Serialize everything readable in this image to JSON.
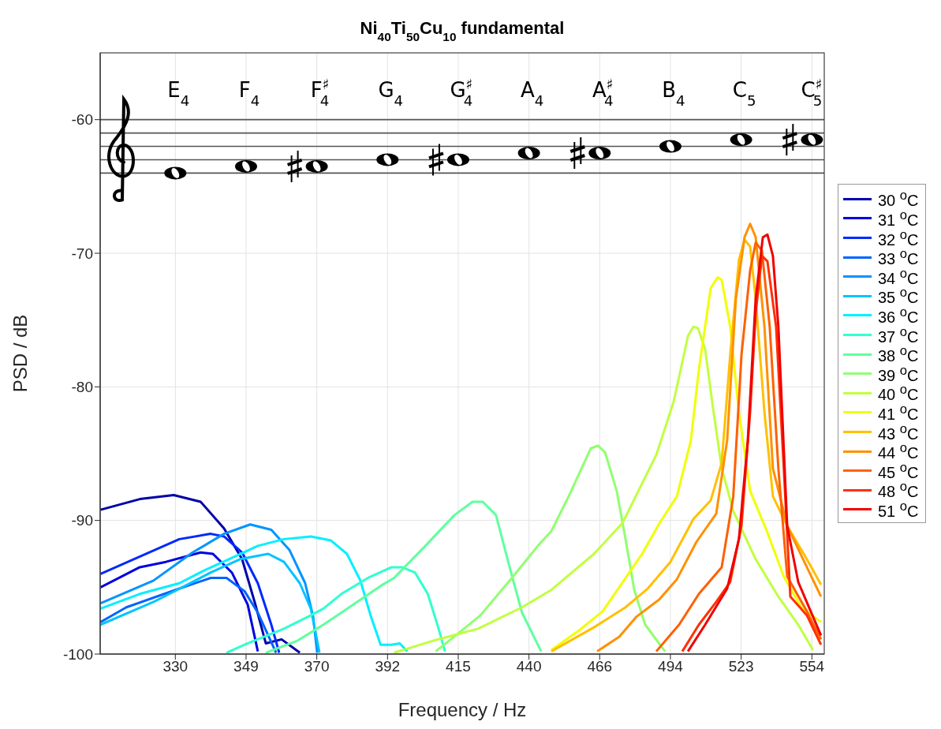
{
  "chart_data": {
    "type": "line",
    "title": "Ni$_{40}$Ti$_{50}$Cu$_{10}$ fundamental",
    "xlabel": "Frequency / Hz",
    "ylabel": "PSD / dB",
    "log": "x",
    "grid": true,
    "legend": "right",
    "line_style": "solid",
    "xlim": [
      310,
      560
    ],
    "ylim": [
      -100,
      -55
    ],
    "xticks": [
      {
        "value": 329.63,
        "label": "330"
      },
      {
        "value": 349.23,
        "label": "349"
      },
      {
        "value": 369.99,
        "label": "370"
      },
      {
        "value": 392,
        "label": "392"
      },
      {
        "value": 415.3,
        "label": "415"
      },
      {
        "value": 440,
        "label": "440"
      },
      {
        "value": 466.16,
        "label": "466"
      },
      {
        "value": 493.88,
        "label": "494"
      },
      {
        "value": 523.25,
        "label": "523"
      },
      {
        "value": 554.37,
        "label": "554"
      }
    ],
    "yticks": [
      -100,
      -90,
      -80,
      -70,
      -60
    ],
    "ref_lines": [
      {
        "axis": "y",
        "value": -60,
        "color": "#555555"
      },
      {
        "axis": "y",
        "value": -61,
        "color": "#555555"
      },
      {
        "axis": "y",
        "value": -62,
        "color": "#555555"
      },
      {
        "axis": "y",
        "value": -63,
        "color": "#555555"
      },
      {
        "axis": "y",
        "value": -64,
        "color": "#555555"
      }
    ],
    "annotations": [
      "E$_{4}$",
      "F$_{4}$",
      "F$^{♯}$$_{4}$",
      "G$_{4}$",
      "G$^{♯}$$_{4}$",
      "A$_{4}$",
      "A$^{♯}$$_{4}$",
      "B$_{4}$",
      "C$_{5}$",
      "C$^{♯}$$_{5}$"
    ],
    "series": [
      {
        "name": "30 $^{o}$C",
        "color": "#0000a8",
        "x": [
          310.1,
          320.2,
          329.2,
          336.5,
          343.0,
          348.1,
          351.9,
          354.9,
          359.5,
          364.9
        ],
        "values": [
          -89.2,
          -88.4,
          -88.1,
          -88.6,
          -90.6,
          -92.9,
          -96.3,
          -99.2,
          -98.9,
          -99.9
        ]
      },
      {
        "name": "31 $^{o}$C",
        "color": "#0000e0",
        "x": [
          310.1,
          320.2,
          327.1,
          336.5,
          339.9,
          345.2,
          349.7,
          352.6
        ],
        "values": [
          -95.0,
          -93.5,
          -93.1,
          -92.4,
          -92.5,
          -93.9,
          -96.3,
          -99.8
        ]
      },
      {
        "name": "32 $^{o}$C",
        "color": "#0028ff",
        "x": [
          310.1,
          330.7,
          339.3,
          343.0,
          348.1,
          352.6,
          356.5,
          358.8
        ],
        "values": [
          -94.0,
          -91.4,
          -91.0,
          -91.2,
          -92.4,
          -94.7,
          -97.8,
          -99.9
        ]
      },
      {
        "name": "33 $^{o}$C",
        "color": "#0064ff",
        "x": [
          310.1,
          316.7,
          330.7,
          339.3,
          343.7,
          348.8,
          352.6,
          355.6,
          357.9
        ],
        "values": [
          -97.6,
          -96.5,
          -95.1,
          -94.3,
          -94.3,
          -95.3,
          -96.9,
          -98.6,
          -99.9
        ]
      },
      {
        "name": "34 $^{o}$C",
        "color": "#0094ff",
        "x": [
          310.1,
          323.8,
          334.3,
          343.0,
          350.4,
          356.5,
          361.8,
          366.5,
          368.9,
          370.1
        ],
        "values": [
          -96.2,
          -94.5,
          -92.4,
          -91.0,
          -90.3,
          -90.7,
          -92.2,
          -94.7,
          -97.2,
          -99.9
        ]
      },
      {
        "name": "35 $^{o}$C",
        "color": "#00c4ff",
        "x": [
          310.1,
          323.8,
          339.3,
          347.5,
          355.6,
          360.2,
          364.9,
          368.2,
          370.1,
          370.8
        ],
        "values": [
          -97.8,
          -96.1,
          -93.9,
          -92.9,
          -92.5,
          -93.1,
          -94.7,
          -96.6,
          -99.0,
          -99.9
        ]
      },
      {
        "name": "36 $^{o}$C",
        "color": "#00f0ff",
        "x": [
          310.1,
          320.2,
          330.7,
          337.8,
          345.2,
          352.6,
          360.2,
          368.2,
          374.3,
          379.2,
          383.4,
          386.6,
          389.8,
          393.3,
          395.9,
          398.4
        ],
        "values": [
          -96.6,
          -95.5,
          -94.7,
          -93.7,
          -92.8,
          -91.9,
          -91.4,
          -91.2,
          -91.5,
          -92.5,
          -94.5,
          -97.1,
          -99.3,
          -99.3,
          -99.2,
          -99.8
        ]
      },
      {
        "name": "37 $^{o}$C",
        "color": "#30ffcf",
        "x": [
          343.7,
          349.7,
          360.2,
          368.2,
          372.0,
          377.5,
          385.8,
          393.3,
          396.6,
          400.9,
          405.1,
          408.7,
          410.8
        ],
        "values": [
          -99.9,
          -99.2,
          -98.1,
          -97.1,
          -96.6,
          -95.5,
          -94.3,
          -93.5,
          -93.5,
          -93.9,
          -95.5,
          -98.1,
          -99.8
        ]
      },
      {
        "name": "38 $^{o}$C",
        "color": "#60ff9f",
        "x": [
          354.9,
          364.2,
          372.0,
          377.5,
          389.8,
          394.1,
          404.3,
          414.0,
          420.2,
          423.7,
          428.3,
          433.1,
          437.5,
          444.4
        ],
        "values": [
          -99.9,
          -99.0,
          -97.8,
          -96.9,
          -94.9,
          -94.3,
          -91.9,
          -89.6,
          -88.6,
          -88.6,
          -89.6,
          -93.5,
          -96.9,
          -99.8
        ]
      },
      {
        "name": "39 $^{o}$C",
        "color": "#90ff6f",
        "x": [
          407.7,
          415.6,
          422.9,
          433.9,
          443.2,
          448.1,
          454.5,
          462.8,
          465.5,
          468.2,
          472.7,
          476.1,
          479.5,
          483.8,
          491.7
        ],
        "values": [
          -99.8,
          -98.4,
          -97.1,
          -94.3,
          -91.9,
          -90.8,
          -88.2,
          -84.6,
          -84.4,
          -84.9,
          -87.8,
          -91.4,
          -95.2,
          -97.8,
          -99.8
        ]
      },
      {
        "name": "40 $^{o}$C",
        "color": "#c0ff3f",
        "x": [
          394.1,
          406.9,
          422.1,
          437.5,
          448.1,
          464.0,
          474.9,
          488.2,
          495.2,
          501.0,
          503.2,
          505.1,
          508.1,
          511.3,
          515.0,
          519.9,
          529.5,
          539.4,
          548.2,
          554.9
        ],
        "values": [
          -99.9,
          -99.0,
          -98.1,
          -96.5,
          -95.2,
          -92.5,
          -90.2,
          -85.1,
          -81.1,
          -76.2,
          -75.5,
          -75.6,
          -77.2,
          -81.5,
          -86.1,
          -89.3,
          -92.9,
          -95.7,
          -97.8,
          -99.7
        ]
      },
      {
        "name": "41 $^{o}$C",
        "color": "#f0ff00",
        "x": [
          448.1,
          458.6,
          467.3,
          482.6,
          489.5,
          496.5,
          502.2,
          505.5,
          510.4,
          513.3,
          515.0,
          518.6,
          522.3,
          527.1,
          534.6,
          541.8,
          549.6,
          558.5
        ],
        "values": [
          -99.7,
          -98.2,
          -96.8,
          -92.5,
          -90.2,
          -88.2,
          -84.0,
          -78.7,
          -72.6,
          -71.8,
          -72.0,
          -75.5,
          -81.9,
          -87.8,
          -90.9,
          -94.2,
          -96.5,
          -97.6
        ]
      },
      {
        "name": "43 $^{o}$C",
        "color": "#ffc000",
        "x": [
          448.1,
          464.0,
          476.1,
          484.8,
          493.9,
          503.2,
          510.4,
          515.0,
          518.6,
          522.3,
          524.7,
          527.1,
          529.5,
          533.3,
          537.0,
          543.3,
          552.1,
          558.5
        ],
        "values": [
          -99.8,
          -98.0,
          -96.5,
          -95.1,
          -93.1,
          -89.9,
          -88.5,
          -85.7,
          -77.6,
          -70.5,
          -69.0,
          -69.5,
          -73.4,
          -81.9,
          -88.2,
          -90.4,
          -92.9,
          -94.8
        ]
      },
      {
        "name": "44 $^{o}$C",
        "color": "#ff9000",
        "x": [
          465.2,
          473.7,
          480.4,
          489.5,
          496.5,
          504.5,
          512.7,
          517.3,
          521.0,
          524.7,
          527.1,
          529.5,
          533.3,
          537.0,
          543.3,
          552.1,
          558.5
        ],
        "values": [
          -99.8,
          -98.7,
          -97.2,
          -95.9,
          -94.4,
          -91.6,
          -89.5,
          -84.0,
          -73.4,
          -68.8,
          -67.8,
          -68.8,
          -75.5,
          -86.1,
          -90.4,
          -93.5,
          -95.7
        ]
      },
      {
        "name": "45 $^{o}$C",
        "color": "#ff6000",
        "x": [
          488.2,
          497.4,
          505.5,
          515.0,
          519.9,
          523.4,
          527.1,
          529.5,
          532.2,
          535.6,
          539.4,
          543.3,
          552.1,
          558.5
        ],
        "values": [
          -99.8,
          -97.8,
          -95.5,
          -93.5,
          -88.2,
          -77.6,
          -71.3,
          -69.2,
          -69.8,
          -75.5,
          -86.1,
          -94.2,
          -96.8,
          -98.9
        ]
      },
      {
        "name": "48 $^{o}$C",
        "color": "#ff3000",
        "x": [
          498.7,
          505.5,
          512.7,
          518.6,
          523.4,
          527.1,
          529.5,
          532.2,
          534.6,
          538.4,
          541.8,
          544.7,
          552.1,
          558.5
        ],
        "values": [
          -99.8,
          -97.8,
          -96.1,
          -94.6,
          -90.4,
          -81.9,
          -74.5,
          -70.2,
          -70.6,
          -75.5,
          -86.1,
          -95.7,
          -97.1,
          -99.3
        ]
      },
      {
        "name": "51 $^{o}$C",
        "color": "#f00000",
        "x": [
          501.0,
          508.1,
          517.3,
          522.3,
          526.1,
          529.5,
          532.6,
          534.6,
          537.0,
          539.4,
          543.3,
          548.2,
          558.5
        ],
        "values": [
          -99.8,
          -97.8,
          -95.1,
          -91.4,
          -84.0,
          -73.4,
          -68.8,
          -68.6,
          -70.2,
          -75.5,
          -90.4,
          -94.6,
          -98.6
        ]
      }
    ]
  }
}
